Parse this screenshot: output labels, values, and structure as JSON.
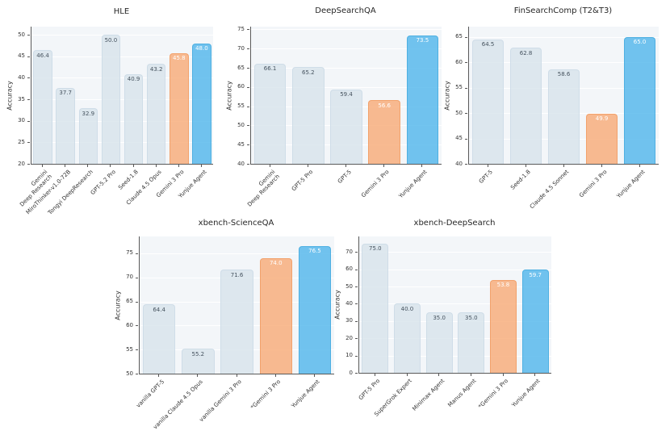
{
  "figure": {
    "background": "#ffffff"
  },
  "colors": {
    "bar_default": "rgba(215,227,235,0.8)",
    "bar_default_edge": "#cfdde8",
    "bar_orange": "rgba(248,170,117,0.8)",
    "bar_orange_edge": "#f2a26c",
    "bar_blue": "rgba(79,181,235,0.8)",
    "bar_blue_edge": "#4fb0e2",
    "value_label_dark": "#45525e",
    "value_label_light": "#ffffff",
    "plot_bg": "#f3f6f9",
    "grid": "#ffffff",
    "spine": "#5a5a5a",
    "tick_text": "#333333",
    "title_text": "#262626"
  },
  "chart_data": [
    {
      "type": "bar",
      "title": "HLE",
      "xlabel": "",
      "ylabel": "Accuracy",
      "ylim": [
        20,
        51.9
      ],
      "yticks": [
        20,
        25,
        30,
        35,
        40,
        45,
        50
      ],
      "grid": true,
      "legend": false,
      "categories": [
        "Gemini\nDeep Research",
        "MiroThinker-v1.0-72B",
        "Tongyi DeepResearch",
        "GPT-5.2 Pro",
        "Seed-1.8",
        "Claude 4.5 Opus",
        "Gemini 3 Pro",
        "Yunjue Agent"
      ],
      "values": [
        46.4,
        37.7,
        32.9,
        50.0,
        40.9,
        43.2,
        45.8,
        48.0
      ],
      "bar_roles": [
        "default",
        "default",
        "default",
        "default",
        "default",
        "default",
        "orange",
        "blue"
      ]
    },
    {
      "type": "bar",
      "title": "DeepSearchQA",
      "xlabel": "",
      "ylabel": "Accuracy",
      "ylim": [
        40,
        75.7
      ],
      "yticks": [
        40,
        45,
        50,
        55,
        60,
        65,
        70,
        75
      ],
      "grid": true,
      "legend": false,
      "categories": [
        "Gemini\nDeep Research",
        "GPT-5 Pro",
        "GPT-5",
        "Gemini 3 Pro",
        "Yunjue Agent"
      ],
      "values": [
        66.1,
        65.2,
        59.4,
        56.6,
        73.5
      ],
      "bar_roles": [
        "default",
        "default",
        "default",
        "orange",
        "blue"
      ]
    },
    {
      "type": "bar",
      "title": "FinSearchComp (T2&T3)",
      "xlabel": "",
      "ylabel": "Accuracy",
      "ylim": [
        40,
        67
      ],
      "yticks": [
        40,
        45,
        50,
        55,
        60,
        65
      ],
      "grid": true,
      "legend": false,
      "categories": [
        "GPT-5",
        "Seed-1.8",
        "Claude 4.5 Sonnet",
        "Gemini 3 Pro",
        "Yunjue Agent"
      ],
      "values": [
        64.5,
        62.8,
        58.6,
        49.9,
        65.0
      ],
      "bar_roles": [
        "default",
        "default",
        "default",
        "orange",
        "blue"
      ]
    },
    {
      "type": "bar",
      "title": "xbench-ScienceQA",
      "xlabel": "",
      "ylabel": "Accuracy",
      "ylim": [
        50,
        78.5
      ],
      "yticks": [
        50,
        55,
        60,
        65,
        70,
        75
      ],
      "grid": true,
      "legend": false,
      "categories": [
        "vanilla GPT-5",
        "vanilla Claude 4.5 Opus",
        "vanilla Gemini 3 Pro",
        "*Gemini 3 Pro",
        "Yunjue Agent"
      ],
      "values": [
        64.4,
        55.2,
        71.6,
        74.0,
        76.5
      ],
      "bar_roles": [
        "default",
        "default",
        "default",
        "orange",
        "blue"
      ]
    },
    {
      "type": "bar",
      "title": "xbench-DeepSearch",
      "xlabel": "",
      "ylabel": "Accuracy",
      "ylim": [
        0,
        79
      ],
      "yticks": [
        0,
        10,
        20,
        30,
        40,
        50,
        60,
        70
      ],
      "grid": true,
      "legend": false,
      "categories": [
        "GPT-5 Pro",
        "SuperGrok Expert",
        "Minimax Agent",
        "Manus Agent",
        "*Gemini 3 Pro",
        "Yunjue Agent"
      ],
      "values": [
        75.0,
        40.0,
        35.0,
        35.0,
        53.8,
        59.7
      ],
      "bar_roles": [
        "default",
        "default",
        "default",
        "default",
        "orange",
        "blue"
      ]
    }
  ]
}
